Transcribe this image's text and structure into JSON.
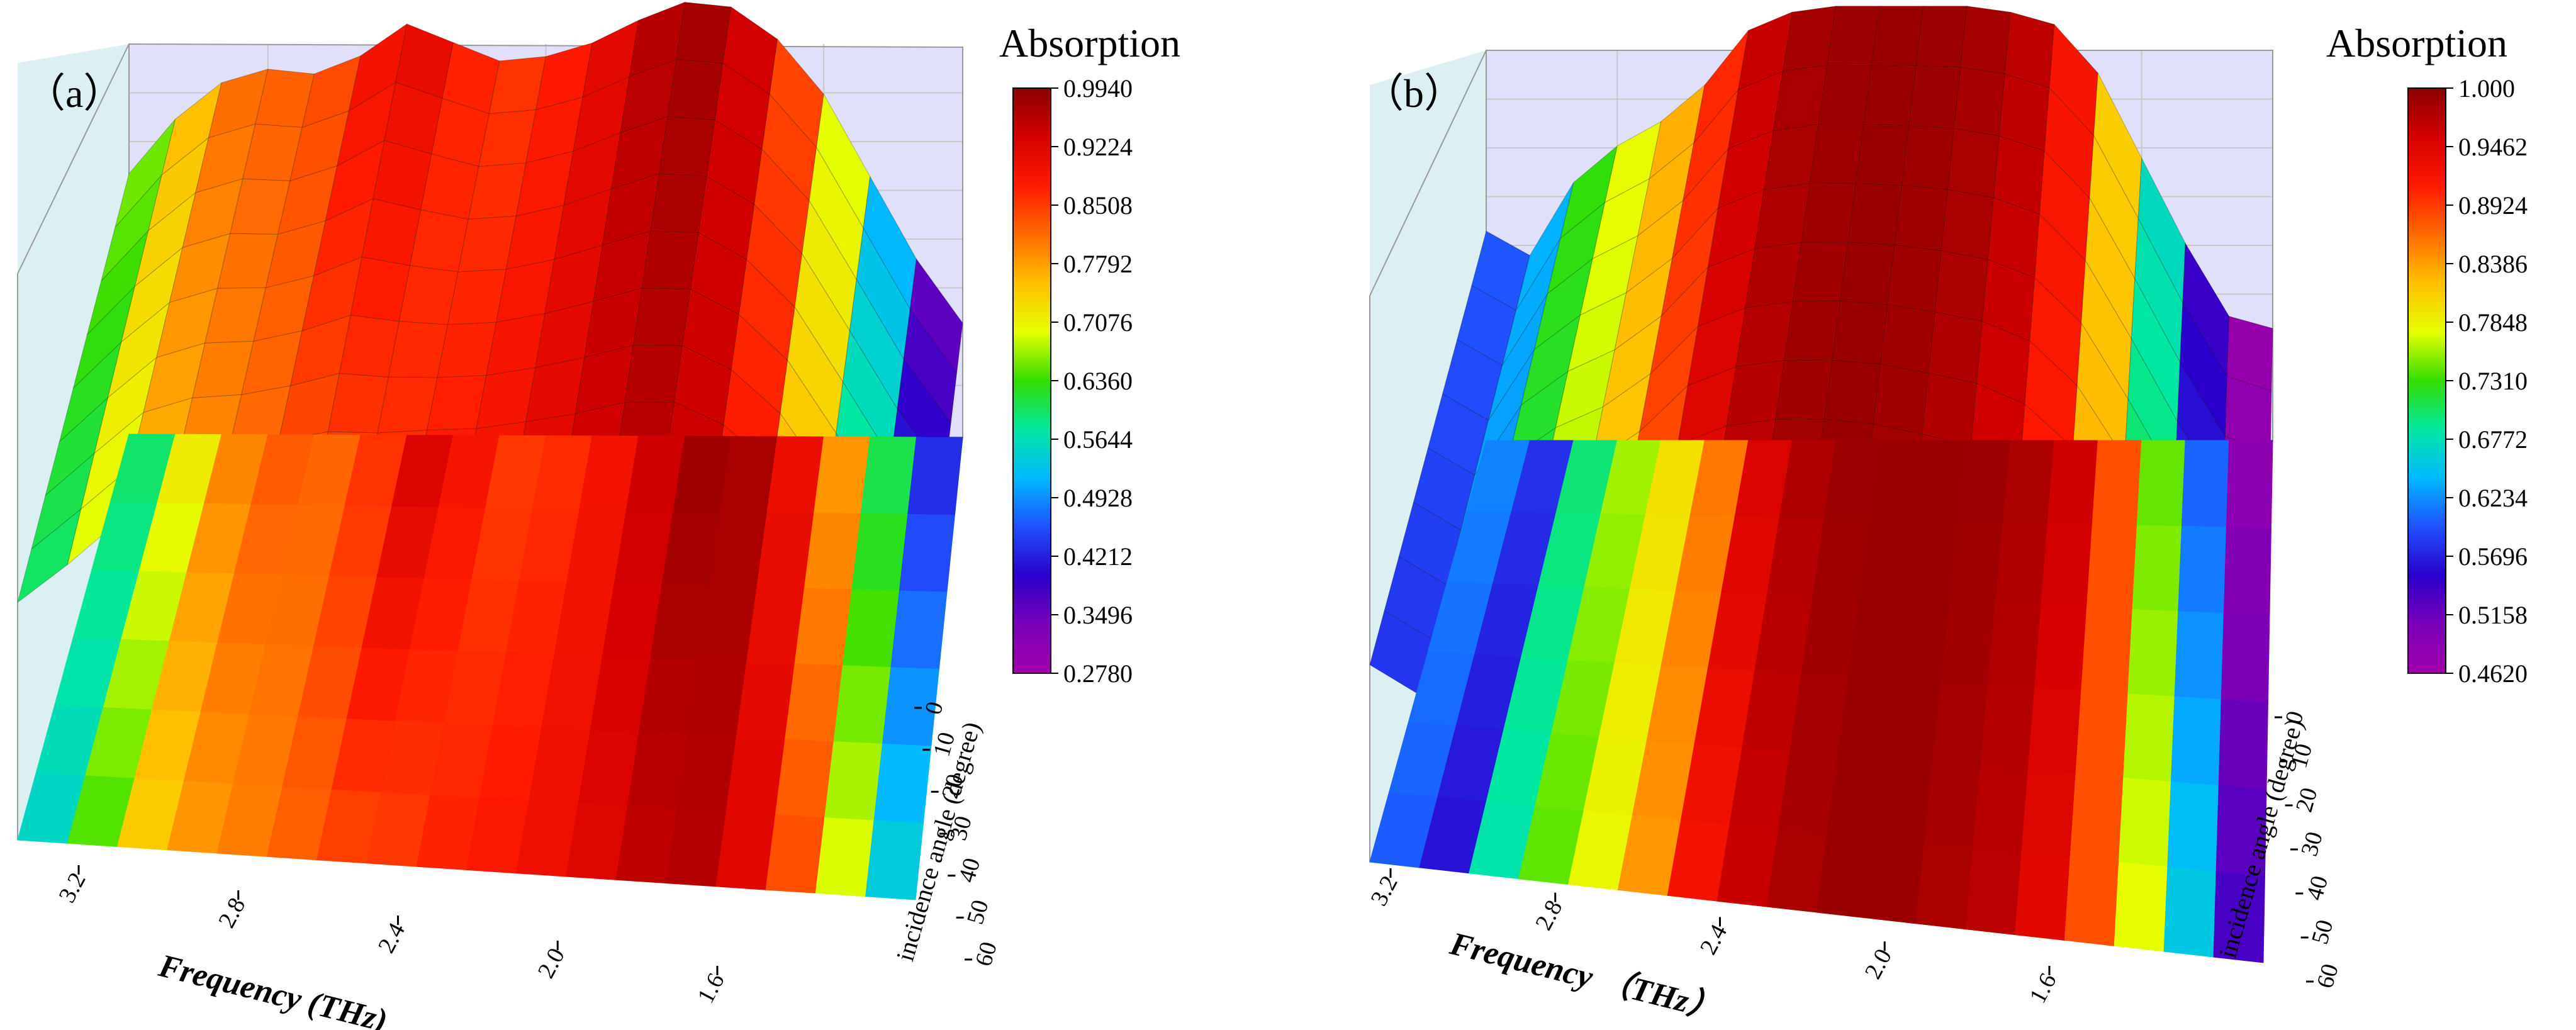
{
  "chart_data": [
    {
      "type": "surface3d",
      "panel_label": "（a）",
      "colorbar_title": "Absorption",
      "colorbar_ticks": [
        "0.9940",
        "0.9224",
        "0.8508",
        "0.7792",
        "0.7076",
        "0.6360",
        "0.5644",
        "0.4928",
        "0.4212",
        "0.3496",
        "0.2780"
      ],
      "zlim": [
        0.278,
        0.994
      ],
      "xlabel": "Frequency (THz)",
      "x_ticks": [
        "3.2",
        "2.8",
        "2.4",
        "2.0",
        "1.6"
      ],
      "ylabel": "incidence angle (degree)",
      "y_ticks": [
        "0",
        "10",
        "20",
        "30",
        "40",
        "50",
        "60"
      ],
      "frequency_THz": [
        3.3,
        3.2,
        3.1,
        3.0,
        2.9,
        2.8,
        2.7,
        2.6,
        2.5,
        2.4,
        2.3,
        2.2,
        2.1,
        2.0,
        1.9,
        1.8,
        1.7,
        1.6,
        1.5
      ],
      "absorption_at_0deg": [
        0.6,
        0.72,
        0.8,
        0.83,
        0.82,
        0.86,
        0.93,
        0.89,
        0.85,
        0.86,
        0.89,
        0.94,
        0.98,
        0.97,
        0.9,
        0.78,
        0.6,
        0.42,
        0.28
      ],
      "absorption_at_60deg": [
        0.55,
        0.64,
        0.74,
        0.78,
        0.8,
        0.82,
        0.84,
        0.85,
        0.87,
        0.88,
        0.9,
        0.92,
        0.95,
        0.96,
        0.92,
        0.84,
        0.7,
        0.55,
        0.42
      ]
    },
    {
      "type": "surface3d",
      "panel_label": "（b）",
      "colorbar_title": "Absorption",
      "colorbar_ticks": [
        "1.000",
        "0.9462",
        "0.8924",
        "0.8386",
        "0.7848",
        "0.7310",
        "0.6772",
        "0.6234",
        "0.5696",
        "0.5158",
        "0.4620"
      ],
      "zlim": [
        0.462,
        1.0
      ],
      "xlabel": "Frequency （THz）",
      "x_ticks": [
        "3.2",
        "2.8",
        "2.4",
        "2.0",
        "1.6"
      ],
      "ylabel": "incidence angle (degree)",
      "y_ticks": [
        "0",
        "10",
        "20",
        "30",
        "40",
        "50",
        "60"
      ],
      "frequency_THz": [
        3.3,
        3.2,
        3.1,
        3.0,
        2.9,
        2.8,
        2.7,
        2.6,
        2.5,
        2.4,
        2.3,
        2.2,
        2.1,
        2.0,
        1.9,
        1.8,
        1.7,
        1.6,
        1.5
      ],
      "absorption_at_0deg": [
        0.62,
        0.58,
        0.7,
        0.76,
        0.8,
        0.86,
        0.95,
        0.98,
        0.99,
        0.99,
        0.99,
        0.99,
        0.98,
        0.96,
        0.88,
        0.74,
        0.6,
        0.48,
        0.46
      ],
      "absorption_at_60deg": [
        0.6,
        0.56,
        0.68,
        0.74,
        0.78,
        0.84,
        0.92,
        0.96,
        0.98,
        0.99,
        0.99,
        0.98,
        0.97,
        0.94,
        0.88,
        0.78,
        0.66,
        0.54,
        0.5
      ]
    }
  ]
}
